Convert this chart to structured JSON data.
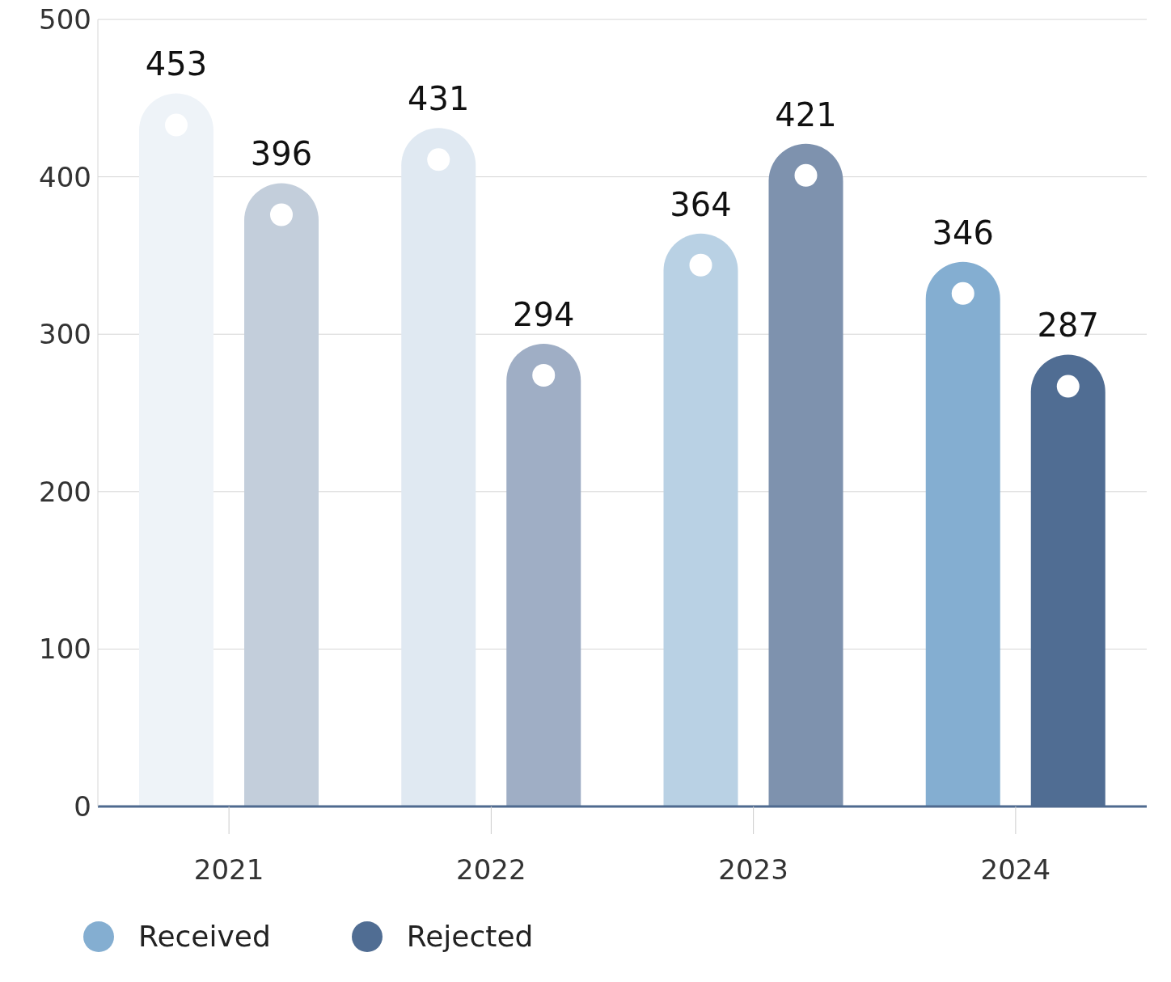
{
  "chart_data": {
    "type": "bar",
    "categories": [
      "2021",
      "2022",
      "2023",
      "2024"
    ],
    "series": [
      {
        "name": "Received",
        "color": "#84aed1",
        "colors": [
          "#eef3f8",
          "#e0e9f2",
          "#b9d1e4",
          "#84aed1"
        ],
        "values": [
          453,
          431,
          364,
          346
        ]
      },
      {
        "name": "Rejected",
        "color": "#506d93",
        "colors": [
          "#c3cedb",
          "#9faec5",
          "#7e92ae",
          "#506d93"
        ],
        "values": [
          396,
          294,
          421,
          287
        ]
      }
    ],
    "ylim": [
      0,
      500
    ],
    "yticks": [
      0,
      100,
      200,
      300,
      400,
      500
    ],
    "grid": "y",
    "legend": "bottom left",
    "data_labels": true
  }
}
